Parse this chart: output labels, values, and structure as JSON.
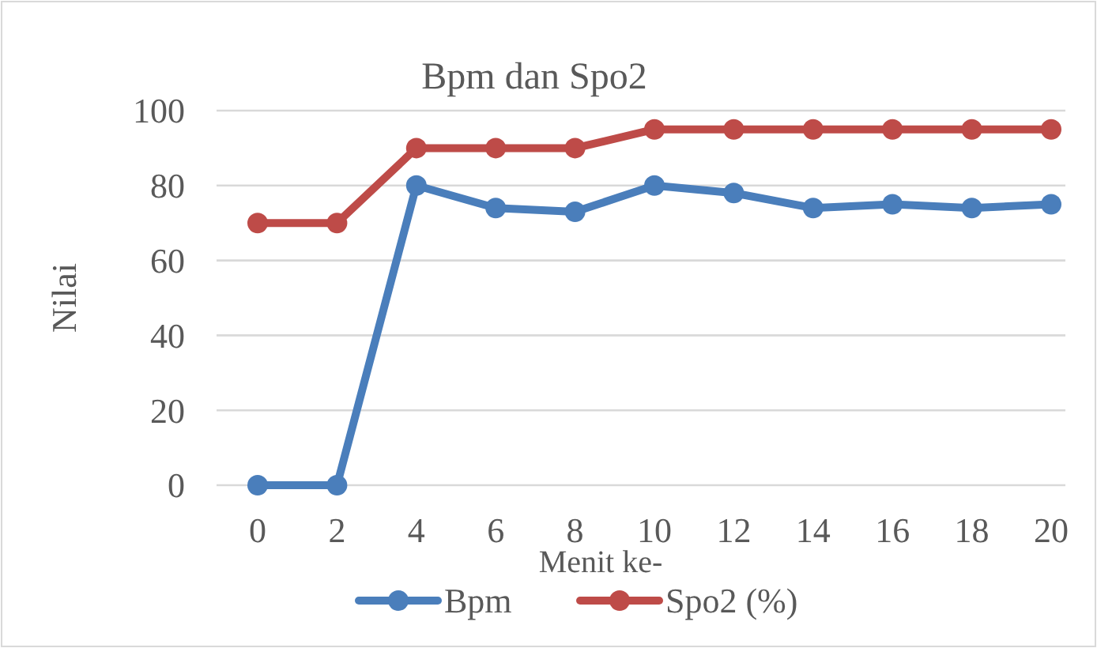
{
  "chart_data": {
    "type": "line",
    "title": "Bpm dan Spo2",
    "xlabel": "Menit ke-",
    "ylabel": "Nilai",
    "categories": [
      "0",
      "2",
      "4",
      "6",
      "8",
      "10",
      "12",
      "14",
      "16",
      "18",
      "20"
    ],
    "series": [
      {
        "name": "Bpm",
        "color": "#4a7ebb",
        "values": [
          0,
          0,
          80,
          74,
          73,
          80,
          78,
          74,
          75,
          74,
          75
        ]
      },
      {
        "name": "Spo2 (%)",
        "color": "#be4b48",
        "values": [
          70,
          70,
          90,
          90,
          90,
          95,
          95,
          95,
          95,
          95,
          95
        ]
      }
    ],
    "ylim": [
      0,
      100
    ],
    "yticks": [
      0,
      20,
      40,
      60,
      80,
      100
    ],
    "grid": "y",
    "legend": "bottom",
    "marker": "circle",
    "line_style": "solid"
  }
}
